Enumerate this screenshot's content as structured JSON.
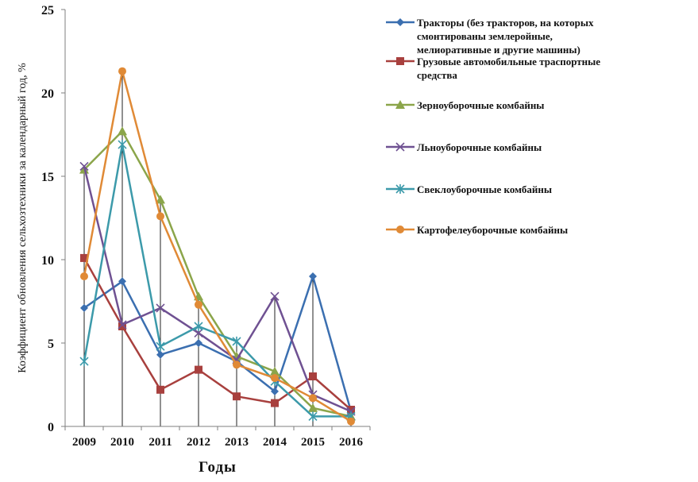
{
  "chart_data": {
    "type": "line",
    "xlabel": "Годы",
    "ylabel": "Коэффициент обновления сельхозтехники за календарный год, %",
    "ylim": [
      0,
      25
    ],
    "yticks": [
      "0",
      "5",
      "10",
      "15",
      "20",
      "25"
    ],
    "categories": [
      "2009",
      "2010",
      "2011",
      "2012",
      "2013",
      "2014",
      "2015",
      "2016"
    ],
    "grid": "vertical drop lines",
    "legend_position": "right",
    "series": [
      {
        "name_lines": [
          "Тракторы  (без тракторов, на которых",
          "смонтированы землеройные,",
          "мелиоративные и другие машины)"
        ],
        "color": "#3b6fb0",
        "marker": "diamond",
        "values": [
          7.1,
          8.7,
          4.3,
          5.0,
          3.9,
          2.1,
          9.0,
          0.9
        ]
      },
      {
        "name_lines": [
          "Грузовые автомобильные траспортные",
          "средства"
        ],
        "color": "#a8403e",
        "marker": "square",
        "values": [
          10.1,
          6.0,
          2.2,
          3.4,
          1.8,
          1.4,
          3.0,
          1.0
        ]
      },
      {
        "name_lines": [
          "Зерноуборочные комбайны"
        ],
        "color": "#8ba54a",
        "marker": "triangle",
        "values": [
          15.4,
          17.7,
          13.6,
          7.8,
          4.2,
          3.3,
          1.1,
          0.6
        ]
      },
      {
        "name_lines": [
          "Льноуборочные комбайны"
        ],
        "color": "#6f5192",
        "marker": "x",
        "values": [
          15.6,
          6.1,
          7.1,
          5.6,
          4.0,
          7.8,
          1.9,
          0.9
        ]
      },
      {
        "name_lines": [
          "Свеклоуборочные комбайны"
        ],
        "color": "#3c9aaa",
        "marker": "star",
        "values": [
          3.9,
          16.9,
          4.8,
          6.0,
          5.1,
          2.7,
          0.6,
          0.6
        ]
      },
      {
        "name_lines": [
          "Картофелеуборочные комбайны"
        ],
        "color": "#e08a36",
        "marker": "circle",
        "values": [
          9.0,
          21.3,
          12.6,
          7.3,
          3.7,
          2.9,
          1.7,
          0.3
        ]
      }
    ]
  }
}
